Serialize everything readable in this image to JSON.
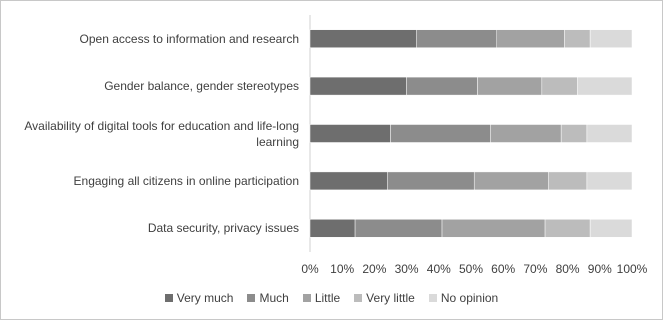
{
  "chart_data": {
    "type": "stacked-bar-horizontal",
    "categories": [
      "Open access to information and research",
      "Gender balance, gender stereotypes",
      "Availability of digital tools for education and life-long learning",
      "Engaging all citizens in online participation",
      "Data security, privacy issues"
    ],
    "series": [
      {
        "name": "Very much",
        "color": "#6e6e6e",
        "values": [
          33,
          30,
          25,
          24,
          14
        ]
      },
      {
        "name": "Much",
        "color": "#8c8c8c",
        "values": [
          25,
          22,
          31,
          27,
          27
        ]
      },
      {
        "name": "Little",
        "color": "#a2a2a2",
        "values": [
          21,
          20,
          22,
          23,
          32
        ]
      },
      {
        "name": "Very little",
        "color": "#bcbcbc",
        "values": [
          8,
          11,
          8,
          12,
          14
        ]
      },
      {
        "name": "No opinion",
        "color": "#dadada",
        "values": [
          13,
          17,
          14,
          14,
          13
        ]
      }
    ],
    "xlim": [
      0,
      100
    ],
    "xticks": [
      {
        "value": 0,
        "label": "0%"
      },
      {
        "value": 10,
        "label": "10%"
      },
      {
        "value": 20,
        "label": "20%"
      },
      {
        "value": 30,
        "label": "30%"
      },
      {
        "value": 40,
        "label": "40%"
      },
      {
        "value": 50,
        "label": "50%"
      },
      {
        "value": 60,
        "label": "60%"
      },
      {
        "value": 70,
        "label": "70%"
      },
      {
        "value": 80,
        "label": "80%"
      },
      {
        "value": 90,
        "label": "90%"
      },
      {
        "value": 100,
        "label": "100%"
      }
    ],
    "legend": "bottom"
  }
}
